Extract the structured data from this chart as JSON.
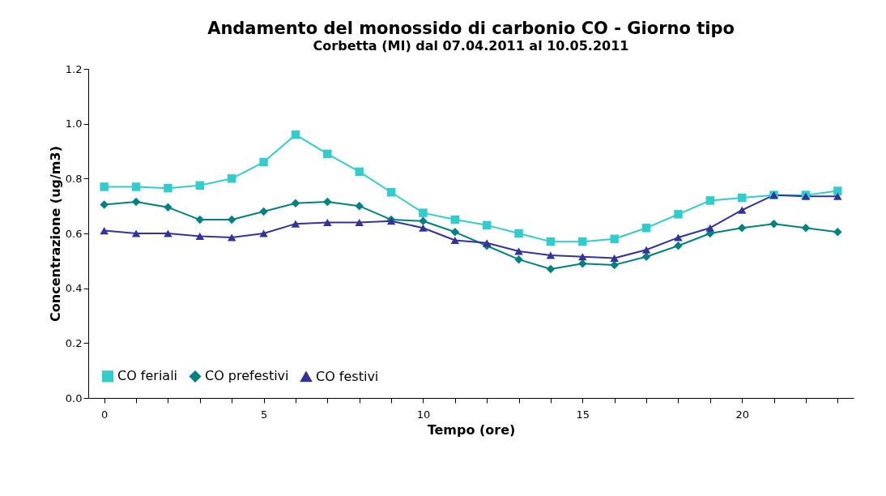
{
  "chart_data": {
    "type": "line",
    "title": "Andamento del monossido di carbonio CO - Giorno tipo",
    "subtitle": "Corbetta (MI)  dal 07.04.2011  al 10.05.2011",
    "xlabel": "Tempo  (ore)",
    "ylabel": "Concentrazione  (ug/m3)",
    "x": [
      0,
      1,
      2,
      3,
      4,
      5,
      6,
      7,
      8,
      9,
      10,
      11,
      12,
      13,
      14,
      15,
      16,
      17,
      18,
      19,
      20,
      21,
      22,
      23
    ],
    "series": [
      {
        "name": "CO feriali",
        "color": "#33cccc",
        "marker": "square",
        "values": [
          0.77,
          0.77,
          0.765,
          0.775,
          0.8,
          0.86,
          0.96,
          0.89,
          0.825,
          0.75,
          0.675,
          0.65,
          0.63,
          0.6,
          0.57,
          0.57,
          0.58,
          0.62,
          0.67,
          0.72,
          0.73,
          0.74,
          0.74,
          0.755
        ]
      },
      {
        "name": "CO prefestivi",
        "color": "#008080",
        "marker": "diamond",
        "values": [
          0.705,
          0.715,
          0.695,
          0.65,
          0.65,
          0.68,
          0.71,
          0.715,
          0.7,
          0.65,
          0.645,
          0.605,
          0.555,
          0.505,
          0.47,
          0.49,
          0.485,
          0.515,
          0.555,
          0.6,
          0.62,
          0.635,
          0.62,
          0.605
        ]
      },
      {
        "name": "CO festivi",
        "color": "#333399",
        "marker": "triangle",
        "values": [
          0.61,
          0.6,
          0.6,
          0.59,
          0.585,
          0.6,
          0.635,
          0.64,
          0.64,
          0.645,
          0.62,
          0.575,
          0.565,
          0.535,
          0.52,
          0.515,
          0.51,
          0.54,
          0.585,
          0.62,
          0.685,
          0.74,
          0.735,
          0.735
        ]
      }
    ],
    "xlim": [
      -0.5,
      23.5
    ],
    "xticks": [
      0,
      {
        "value": 1,
        "label": null
      },
      {
        "value": 2,
        "label": null
      },
      {
        "value": 3,
        "label": null
      },
      {
        "value": 4,
        "label": null
      },
      5,
      {
        "value": 6,
        "label": null
      },
      {
        "value": 7,
        "label": null
      },
      {
        "value": 8,
        "label": null
      },
      {
        "value": 9,
        "label": null
      },
      10,
      {
        "value": 11,
        "label": null
      },
      {
        "value": 12,
        "label": null
      },
      {
        "value": 13,
        "label": null
      },
      {
        "value": 14,
        "label": null
      },
      15,
      {
        "value": 16,
        "label": null
      },
      {
        "value": 17,
        "label": null
      },
      {
        "value": 18,
        "label": null
      },
      {
        "value": 19,
        "label": null
      },
      20,
      {
        "value": 21,
        "label": null
      },
      {
        "value": 22,
        "label": null
      },
      {
        "value": 23,
        "label": null
      }
    ],
    "ylim": [
      0,
      1.2
    ],
    "yticks": [
      {
        "value": 0,
        "label": "0.0"
      },
      {
        "value": 0.2,
        "label": "0.2"
      },
      {
        "value": 0.4,
        "label": "0.4"
      },
      {
        "value": 0.6,
        "label": "0.6"
      },
      {
        "value": 0.8,
        "label": "0.8"
      },
      {
        "value": 1.0,
        "label": "1.0"
      },
      {
        "value": 1.2,
        "label": "1.2"
      }
    ],
    "grid": false,
    "legend": "bottom left",
    "line_style": "solid"
  }
}
